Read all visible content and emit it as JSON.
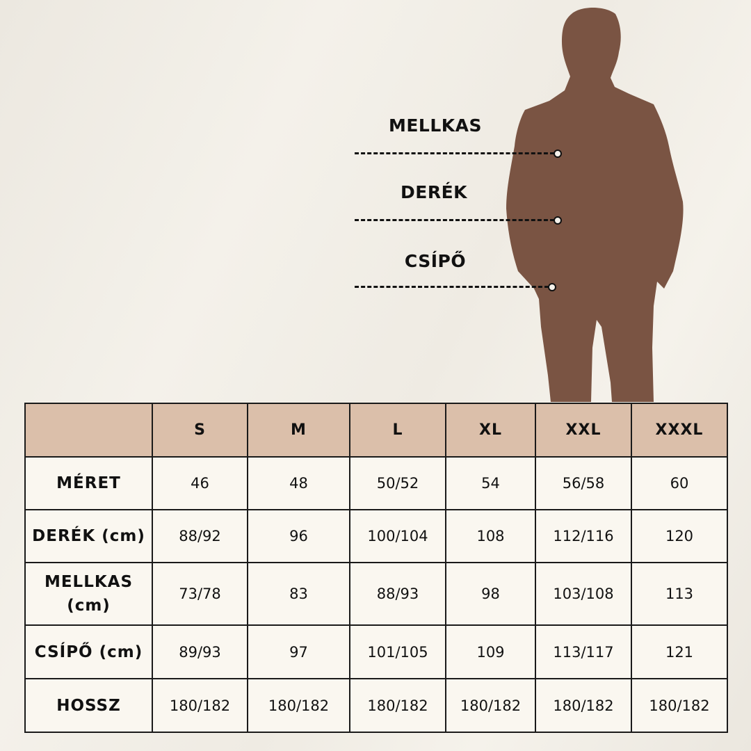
{
  "colors": {
    "silhouette": "#7a5443",
    "header_bg": "#dbbfaa",
    "cell_bg": "#faf7f0"
  },
  "figure": {
    "icon": "man-silhouette-icon"
  },
  "measurements": [
    {
      "label": "MELLKAS"
    },
    {
      "label": "DERÉK"
    },
    {
      "label": "CSÍPŐ"
    }
  ],
  "table": {
    "corner": "",
    "columns": [
      "S",
      "M",
      "L",
      "XL",
      "XXL",
      "XXXL"
    ],
    "rows": [
      {
        "label": "MÉRET",
        "values": [
          "46",
          "48",
          "50/52",
          "54",
          "56/58",
          "60"
        ]
      },
      {
        "label": "DERÉK (cm)",
        "values": [
          "88/92",
          "96",
          "100/104",
          "108",
          "112/116",
          "120"
        ]
      },
      {
        "label": "MELLKAS (cm)",
        "values": [
          "73/78",
          "83",
          "88/93",
          "98",
          "103/108",
          "113"
        ]
      },
      {
        "label": "CSÍPŐ (cm)",
        "values": [
          "89/93",
          "97",
          "101/105",
          "109",
          "113/117",
          "121"
        ]
      },
      {
        "label": "HOSSZ",
        "values": [
          "180/182",
          "180/182",
          "180/182",
          "180/182",
          "180/182",
          "180/182"
        ]
      }
    ]
  }
}
